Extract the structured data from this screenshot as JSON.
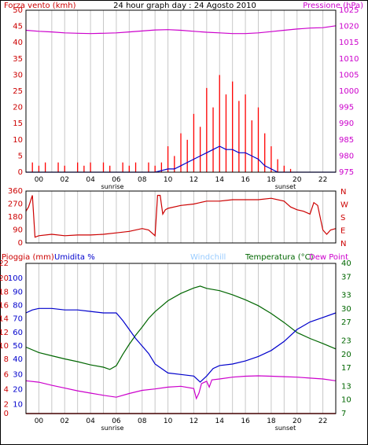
{
  "chart_data": [
    {
      "type": "line",
      "panel": "wind-pressure",
      "title": "24 hour graph day : 24 Agosto 2010",
      "ylabel_left": "Forza vento (kmh)",
      "ylabel_right": "Pressione (hPa)",
      "ylim_left": [
        0,
        50
      ],
      "ylim_right": [
        975,
        1025
      ],
      "yticks_left": [
        "0",
        "5",
        "10",
        "15",
        "20",
        "25",
        "30",
        "35",
        "40",
        "45",
        "50"
      ],
      "yticks_right": [
        "975",
        "980",
        "985",
        "990",
        "995",
        "1000",
        "1005",
        "1010",
        "1015",
        "1020",
        "1025"
      ],
      "xlim": [
        0,
        24
      ],
      "xticks": [
        "00",
        "02",
        "04",
        "06",
        "08",
        "10",
        "12",
        "14",
        "16",
        "18",
        "20",
        "22"
      ],
      "annotations": [
        "sunrise",
        "sunset"
      ],
      "colors": {
        "gust": "#ff0000",
        "wind": "#0000cc",
        "pressure": "#cc00cc",
        "left_axis": "#cc0000",
        "right_axis": "#cc00cc"
      },
      "series": [
        {
          "key": "gust",
          "x": [
            0.5,
            1.0,
            1.5,
            2.0,
            2.5,
            3.0,
            3.5,
            4.0,
            4.5,
            5.0,
            5.5,
            6.0,
            6.5,
            7.0,
            7.5,
            8.0,
            8.5,
            9.0,
            9.5,
            10.0,
            10.5,
            11.0,
            11.5,
            12.0,
            12.5,
            13.0,
            13.5,
            14.0,
            14.5,
            15.0,
            15.5,
            16.0,
            16.5,
            17.0,
            17.5,
            18.0,
            18.5,
            19.0,
            19.5,
            20.0,
            20.5,
            21.0,
            22.0,
            23.0,
            23.8
          ],
          "values": [
            3,
            2,
            3,
            0,
            3,
            2,
            0,
            3,
            2,
            3,
            0,
            3,
            2,
            0,
            3,
            2,
            3,
            0,
            3,
            2,
            3,
            8,
            5,
            12,
            10,
            18,
            14,
            26,
            20,
            30,
            24,
            28,
            22,
            24,
            16,
            20,
            12,
            8,
            4,
            2,
            1,
            0,
            0,
            0,
            0
          ]
        },
        {
          "key": "wind",
          "x": [
            0,
            9.5,
            10.0,
            10.5,
            11.0,
            11.5,
            12.0,
            12.5,
            13.0,
            13.5,
            14.0,
            14.5,
            15.0,
            15.5,
            16.0,
            16.5,
            17.0,
            17.5,
            18.0,
            18.5,
            19.0,
            19.5,
            20.0,
            24.0
          ],
          "values": [
            0,
            0,
            0,
            0.5,
            1,
            1,
            2,
            3,
            4,
            5,
            6,
            7,
            8,
            7,
            7,
            6,
            6,
            5,
            4,
            2,
            1,
            0,
            0,
            0
          ]
        },
        {
          "key": "pressure",
          "x": [
            0,
            1,
            2,
            3,
            4,
            5,
            6,
            7,
            8,
            9,
            10,
            11,
            12,
            13,
            14,
            15,
            16,
            17,
            18,
            19,
            20,
            21,
            22,
            23,
            24
          ],
          "values": [
            1018.8,
            1018.5,
            1018.3,
            1018.0,
            1017.9,
            1017.8,
            1017.9,
            1018.0,
            1018.3,
            1018.6,
            1018.9,
            1019.0,
            1018.8,
            1018.5,
            1018.2,
            1018.0,
            1017.8,
            1017.8,
            1018.0,
            1018.4,
            1018.8,
            1019.2,
            1019.5,
            1019.6,
            1020.2
          ]
        }
      ]
    },
    {
      "type": "line",
      "panel": "wind-direction",
      "ylim": [
        0,
        360
      ],
      "yticks_left": [
        "0",
        "90",
        "180",
        "270",
        "360"
      ],
      "yticks_right": [
        "N",
        "W",
        "S",
        "E",
        "N"
      ],
      "xlim": [
        0,
        24
      ],
      "colors": {
        "direction": "#cc0000",
        "right_axis": "#cc0000"
      },
      "series": [
        {
          "key": "direction",
          "x": [
            0,
            0.2,
            0.5,
            0.7,
            1,
            2,
            3,
            4,
            5,
            6,
            7,
            8,
            9,
            9.5,
            10.0,
            10.2,
            10.4,
            10.6,
            10.8,
            11,
            12,
            13,
            14,
            15,
            16,
            17,
            18,
            19,
            20,
            20.5,
            21,
            21.5,
            22,
            22.3,
            22.6,
            23,
            23.3,
            23.6,
            24
          ],
          "values": [
            220,
            250,
            330,
            40,
            50,
            60,
            50,
            55,
            55,
            60,
            70,
            80,
            100,
            90,
            50,
            330,
            330,
            200,
            230,
            240,
            260,
            270,
            290,
            290,
            300,
            300,
            300,
            310,
            290,
            250,
            230,
            220,
            200,
            280,
            260,
            90,
            60,
            90,
            100
          ]
        }
      ]
    },
    {
      "type": "line",
      "panel": "rain-humidity-temperature",
      "legend": [
        "Pioggia (mm)",
        "Umidita %",
        "Windchill",
        "Temperatura (°C)",
        "Dew Point"
      ],
      "ylim_left": [
        0,
        100
      ],
      "ylim_right": [
        7,
        40
      ],
      "yticks_left_rain": [
        "0",
        "2",
        "4",
        "6",
        "8",
        "10",
        "12",
        "14",
        "16",
        "18",
        "20",
        "22"
      ],
      "yticks_left_humidity": [
        "10",
        "20",
        "30",
        "40",
        "50",
        "60",
        "70",
        "80",
        "90",
        "100"
      ],
      "yticks_left_values": [
        0,
        6,
        16,
        26,
        36,
        45,
        54,
        63,
        72,
        81,
        90,
        100
      ],
      "yticks_right": [
        "7",
        "10",
        "13",
        "17",
        "20",
        "23",
        "27",
        "30",
        "33",
        "37",
        "40"
      ],
      "xlim": [
        0,
        24
      ],
      "xticks": [
        "00",
        "02",
        "04",
        "06",
        "08",
        "10",
        "12",
        "14",
        "16",
        "18",
        "20",
        "22"
      ],
      "annotations": [
        "sunrise",
        "sunset"
      ],
      "colors": {
        "rain": "#cc0000",
        "humidity": "#0000cc",
        "windchill": "#99ccff",
        "temperature": "#006600",
        "dewpoint": "#cc00cc",
        "left_axis": "#cc0000",
        "humidity_axis": "#0000cc",
        "right_axis": "#006600"
      },
      "series": [
        {
          "key": "humidity",
          "x": [
            0,
            0.5,
            1,
            2,
            3,
            4,
            5,
            6,
            7,
            7.5,
            8,
            8.5,
            9,
            9.5,
            10,
            11,
            12,
            13,
            13.5,
            14,
            14.5,
            15,
            16,
            17,
            18,
            19,
            20,
            21,
            22,
            23,
            24
          ],
          "values": [
            67,
            69,
            70,
            70,
            69,
            69,
            68,
            67,
            67,
            62,
            56,
            50,
            45,
            40,
            33,
            27,
            26,
            25,
            21,
            25,
            30,
            32,
            33,
            35,
            38,
            42,
            48,
            56,
            61,
            64,
            67
          ]
        },
        {
          "key": "temperature",
          "x": [
            0,
            1,
            2,
            3,
            4,
            5,
            6,
            6.5,
            7,
            7.5,
            8,
            8.5,
            9,
            9.5,
            10,
            11,
            12,
            13,
            13.5,
            14,
            15,
            16,
            17,
            18,
            19,
            20,
            21,
            22,
            23,
            24
          ],
          "values": [
            21.6,
            20.4,
            19.7,
            19.0,
            18.4,
            17.7,
            17.2,
            16.7,
            17.5,
            20.0,
            22.2,
            24.2,
            26.0,
            27.9,
            29.4,
            31.8,
            33.4,
            34.6,
            35.0,
            34.5,
            34.0,
            33.1,
            32.0,
            30.7,
            29.0,
            27.0,
            24.8,
            23.5,
            22.4,
            21.2
          ]
        },
        {
          "key": "dewpoint",
          "x": [
            0,
            1,
            2,
            3,
            4,
            5,
            6,
            7,
            8,
            9,
            10,
            11,
            12,
            13,
            13.2,
            13.4,
            13.6,
            14,
            14.2,
            14.4,
            15,
            16,
            17,
            18,
            19,
            20,
            21,
            22,
            23,
            24
          ],
          "values": [
            14.2,
            13.9,
            13.2,
            12.6,
            12.0,
            11.5,
            11.0,
            10.6,
            11.4,
            12.1,
            12.4,
            12.8,
            13.0,
            12.5,
            10.3,
            11.5,
            13.6,
            14.1,
            12.8,
            14.4,
            14.6,
            15.0,
            15.2,
            15.3,
            15.2,
            15.1,
            15.0,
            14.8,
            14.6,
            14.2
          ]
        },
        {
          "key": "rain",
          "x": [
            0,
            24
          ],
          "values": [
            0,
            0
          ]
        }
      ]
    }
  ]
}
